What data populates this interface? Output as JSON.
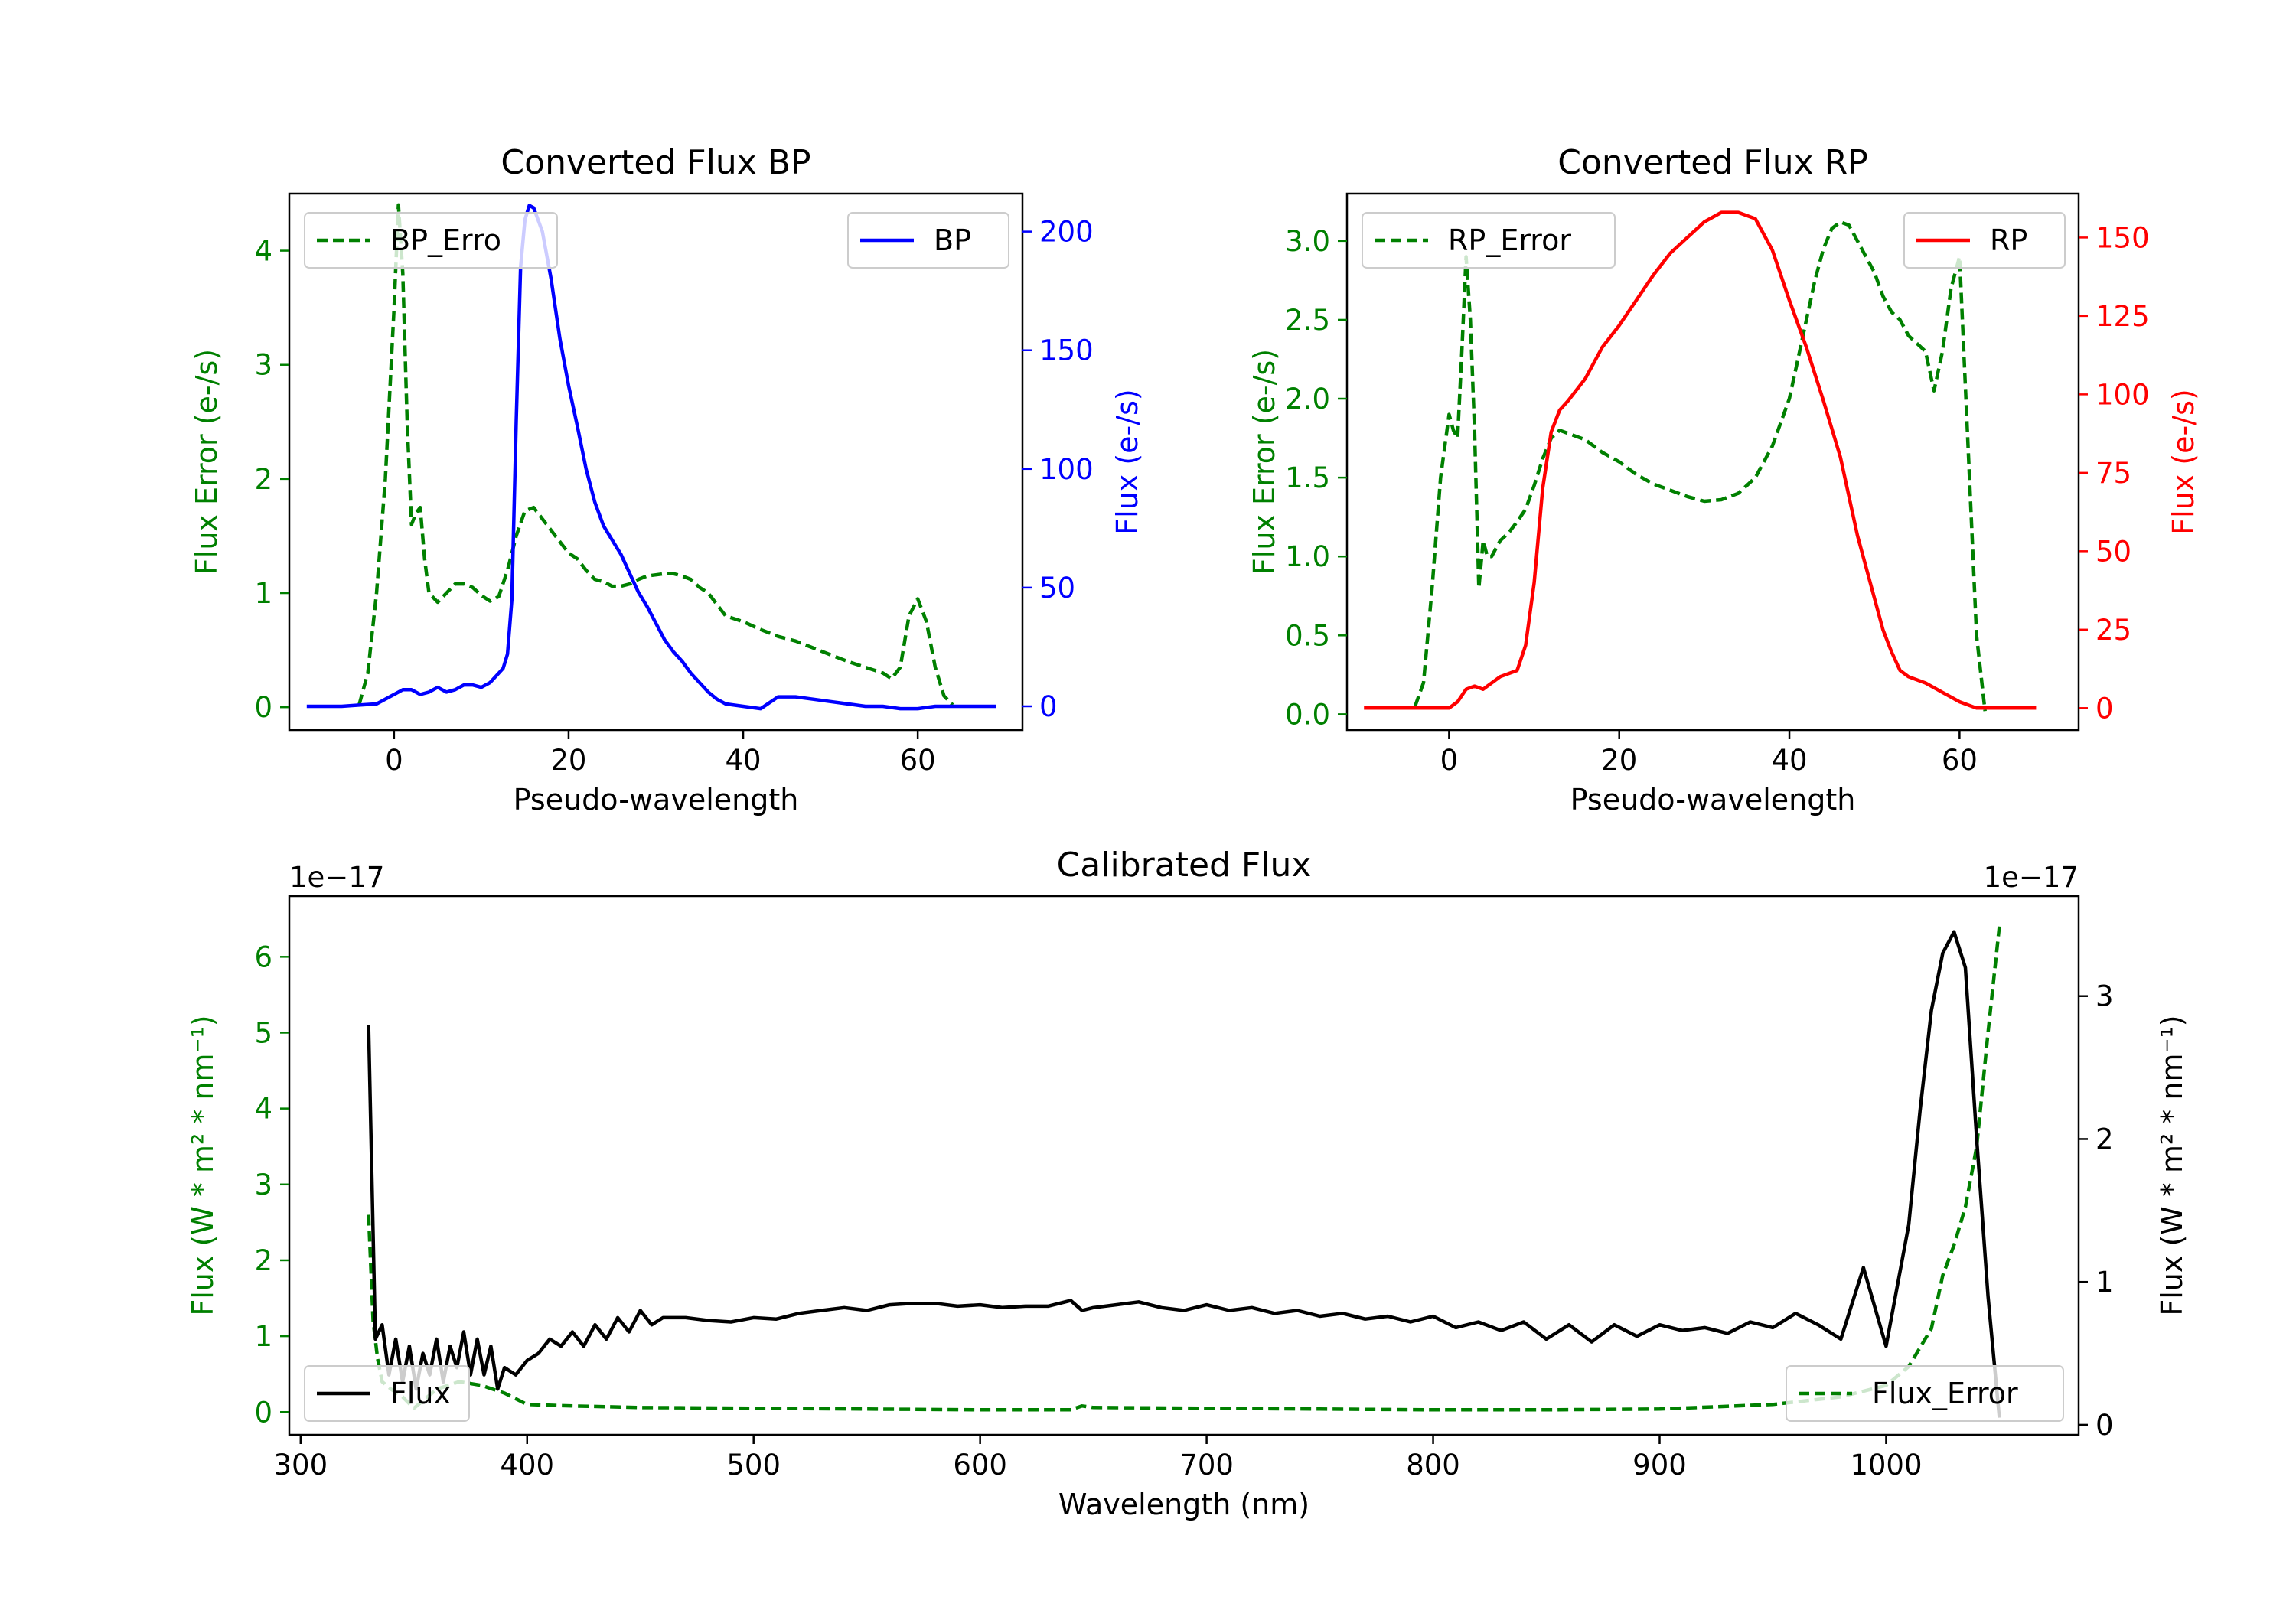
{
  "colors": {
    "error": "#008000",
    "bp": "#0000ff",
    "rp": "#ff0000",
    "flux": "#000000",
    "axis": "#000000"
  },
  "chart_data": [
    {
      "id": "bp",
      "type": "line",
      "title": "Converted Flux BP",
      "xlabel": "Pseudo-wavelength",
      "ylabel_left": "Flux Error (e-/s)",
      "ylabel_right": "Flux (e-/s)",
      "xlim": [
        -12,
        72
      ],
      "ylim_left": [
        -0.2,
        4.5
      ],
      "ylim_right": [
        -10,
        216
      ],
      "xticks": [
        "0",
        "20",
        "40",
        "60"
      ],
      "yticks_left": [
        "0",
        "1",
        "2",
        "3",
        "4"
      ],
      "yticks_right": [
        "0",
        "50",
        "100",
        "150",
        "200"
      ],
      "legend_left": "BP_Erro",
      "legend_right": "BP",
      "series": [
        {
          "name": "BP_Error",
          "axis": "left",
          "style": "dashed",
          "x": [
            -4,
            -3,
            -2,
            -1,
            0,
            0.5,
            1,
            1.5,
            2,
            2.5,
            3,
            3.5,
            4,
            5,
            6,
            7,
            8,
            9,
            10,
            11,
            12,
            13,
            14,
            15,
            16,
            17,
            18,
            19,
            20,
            21,
            22,
            23,
            24,
            25,
            26,
            27,
            28,
            29,
            30,
            31,
            32,
            33,
            34,
            35,
            36,
            38,
            40,
            42,
            44,
            46,
            48,
            50,
            52,
            54,
            56,
            57,
            58,
            59,
            60,
            61,
            62,
            63,
            64
          ],
          "values": [
            0.02,
            0.3,
            1.0,
            2.0,
            3.5,
            4.4,
            3.8,
            2.5,
            1.6,
            1.7,
            1.75,
            1.3,
            1.0,
            0.92,
            1.0,
            1.08,
            1.08,
            1.05,
            0.98,
            0.93,
            0.97,
            1.2,
            1.5,
            1.72,
            1.75,
            1.65,
            1.55,
            1.45,
            1.35,
            1.3,
            1.2,
            1.12,
            1.1,
            1.06,
            1.06,
            1.08,
            1.12,
            1.15,
            1.16,
            1.17,
            1.17,
            1.15,
            1.12,
            1.05,
            1.0,
            0.8,
            0.75,
            0.68,
            0.62,
            0.58,
            0.52,
            0.46,
            0.4,
            0.35,
            0.3,
            0.25,
            0.35,
            0.8,
            0.95,
            0.75,
            0.35,
            0.1,
            0.02
          ]
        },
        {
          "name": "BP",
          "axis": "right",
          "style": "solid",
          "x": [
            -10,
            -6,
            -4,
            -2,
            0,
            1,
            2,
            3,
            4,
            5,
            6,
            7,
            8,
            9,
            10,
            11,
            12,
            12.5,
            13,
            13.5,
            14,
            14.5,
            15,
            15.5,
            16,
            17,
            18,
            19,
            20,
            21,
            22,
            23,
            24,
            25,
            26,
            27,
            28,
            29,
            30,
            31,
            32,
            33,
            34,
            35,
            36,
            37,
            38,
            40,
            42,
            44,
            46,
            48,
            50,
            52,
            54,
            56,
            58,
            60,
            62,
            64,
            66,
            69
          ],
          "values": [
            0,
            0,
            0.5,
            1,
            5,
            7,
            7,
            5,
            6,
            8,
            6,
            7,
            9,
            9,
            8,
            10,
            14,
            16,
            22,
            45,
            120,
            185,
            205,
            211,
            210,
            200,
            180,
            155,
            135,
            118,
            100,
            86,
            76,
            70,
            64,
            56,
            48,
            42,
            35,
            28,
            23,
            19,
            14,
            10,
            6,
            3,
            1,
            0,
            -1,
            4,
            4,
            3,
            2,
            1,
            0,
            0,
            -1,
            -1,
            0,
            0,
            0,
            0
          ]
        }
      ]
    },
    {
      "id": "rp",
      "type": "line",
      "title": "Converted Flux RP",
      "xlabel": "Pseudo-wavelength",
      "ylabel_left": "Flux Error (e-/s)",
      "ylabel_right": "Flux (e-/s)",
      "xlim": [
        -12,
        74
      ],
      "ylim_left": [
        -0.1,
        3.3
      ],
      "ylim_right": [
        -7,
        164
      ],
      "xticks": [
        "0",
        "20",
        "40",
        "60"
      ],
      "yticks_left": [
        "0.0",
        "0.5",
        "1.0",
        "1.5",
        "2.0",
        "2.5",
        "3.0"
      ],
      "yticks_right": [
        "0",
        "25",
        "50",
        "75",
        "100",
        "125",
        "150"
      ],
      "legend_left": "RP_Error",
      "legend_right": "RP",
      "series": [
        {
          "name": "RP_Error",
          "axis": "left",
          "style": "dashed",
          "x": [
            -4,
            -3,
            -2,
            -1,
            0,
            0.5,
            1,
            1.5,
            2,
            2.5,
            3,
            3.5,
            4,
            4.5,
            5,
            6,
            7,
            8,
            9,
            10,
            11,
            12,
            13,
            14,
            16,
            18,
            20,
            22,
            24,
            26,
            28,
            30,
            32,
            34,
            36,
            38,
            40,
            41,
            42,
            43,
            44,
            45,
            46,
            47,
            48,
            49,
            50,
            51,
            52,
            53,
            54,
            55,
            56,
            57,
            58,
            59,
            60,
            61,
            62,
            63
          ],
          "values": [
            0.05,
            0.2,
            0.8,
            1.5,
            1.9,
            1.8,
            1.75,
            2.3,
            2.9,
            2.5,
            1.8,
            0.8,
            1.1,
            1.0,
            1.0,
            1.1,
            1.15,
            1.22,
            1.3,
            1.45,
            1.62,
            1.75,
            1.8,
            1.78,
            1.74,
            1.66,
            1.6,
            1.52,
            1.46,
            1.42,
            1.38,
            1.35,
            1.36,
            1.4,
            1.5,
            1.7,
            2.0,
            2.25,
            2.5,
            2.75,
            2.95,
            3.08,
            3.12,
            3.1,
            3.0,
            2.9,
            2.8,
            2.65,
            2.55,
            2.5,
            2.4,
            2.35,
            2.3,
            2.05,
            2.3,
            2.7,
            2.9,
            1.7,
            0.5,
            0.02
          ]
        },
        {
          "name": "RP",
          "axis": "right",
          "style": "solid",
          "x": [
            -10,
            -6,
            -2,
            0,
            1,
            2,
            3,
            4,
            6,
            8,
            9,
            10,
            11,
            12,
            13,
            14,
            16,
            18,
            20,
            22,
            24,
            26,
            28,
            30,
            32,
            34,
            36,
            38,
            40,
            42,
            44,
            46,
            48,
            50,
            51,
            52,
            53,
            54,
            56,
            58,
            60,
            62,
            64,
            69
          ],
          "values": [
            0,
            0,
            0,
            0,
            2,
            6,
            7,
            6,
            10,
            12,
            20,
            40,
            70,
            88,
            95,
            98,
            105,
            115,
            122,
            130,
            138,
            145,
            150,
            155,
            158,
            158,
            156,
            146,
            130,
            115,
            98,
            80,
            55,
            35,
            25,
            18,
            12,
            10,
            8,
            5,
            2,
            0,
            0,
            0
          ]
        }
      ]
    },
    {
      "id": "calibrated",
      "type": "line",
      "title": "Calibrated Flux",
      "xlabel": "Wavelength (nm)",
      "ylabel_left": "Flux (W * m² * nm⁻¹)",
      "ylabel_right": "Flux (W * m² * nm⁻¹)",
      "offset_left": "1e−17",
      "offset_right": "1e−17",
      "xlim": [
        295,
        1085
      ],
      "ylim_left": [
        -0.3,
        6.8
      ],
      "ylim_right": [
        -0.07,
        3.7
      ],
      "xticks": [
        "300",
        "400",
        "500",
        "600",
        "700",
        "800",
        "900",
        "1000"
      ],
      "yticks_left": [
        "0",
        "1",
        "2",
        "3",
        "4",
        "5",
        "6"
      ],
      "yticks_right": [
        "0",
        "1",
        "2",
        "3"
      ],
      "legend_left": "Flux",
      "legend_right": "Flux_Error",
      "series": [
        {
          "name": "Flux",
          "axis": "right",
          "style": "solid",
          "x": [
            330,
            333,
            336,
            339,
            342,
            345,
            348,
            351,
            354,
            357,
            360,
            363,
            366,
            369,
            372,
            375,
            378,
            381,
            384,
            387,
            390,
            395,
            400,
            405,
            410,
            415,
            420,
            425,
            430,
            435,
            440,
            445,
            450,
            455,
            460,
            470,
            480,
            490,
            500,
            510,
            520,
            530,
            540,
            550,
            560,
            570,
            580,
            590,
            600,
            610,
            620,
            630,
            640,
            645,
            650,
            660,
            670,
            680,
            690,
            700,
            710,
            720,
            730,
            740,
            750,
            760,
            770,
            780,
            790,
            800,
            810,
            820,
            830,
            840,
            850,
            860,
            870,
            880,
            890,
            900,
            910,
            920,
            930,
            940,
            950,
            960,
            970,
            980,
            990,
            1000,
            1010,
            1015,
            1020,
            1025,
            1030,
            1035,
            1040,
            1045,
            1050
          ],
          "values": [
            2.8,
            0.6,
            0.7,
            0.35,
            0.6,
            0.3,
            0.55,
            0.25,
            0.5,
            0.35,
            0.6,
            0.3,
            0.55,
            0.4,
            0.65,
            0.35,
            0.6,
            0.35,
            0.55,
            0.25,
            0.4,
            0.35,
            0.45,
            0.5,
            0.6,
            0.55,
            0.65,
            0.55,
            0.7,
            0.6,
            0.75,
            0.65,
            0.8,
            0.7,
            0.75,
            0.75,
            0.73,
            0.72,
            0.75,
            0.74,
            0.78,
            0.8,
            0.82,
            0.8,
            0.84,
            0.85,
            0.85,
            0.83,
            0.84,
            0.82,
            0.83,
            0.83,
            0.87,
            0.8,
            0.82,
            0.84,
            0.86,
            0.82,
            0.8,
            0.84,
            0.8,
            0.82,
            0.78,
            0.8,
            0.76,
            0.78,
            0.74,
            0.76,
            0.72,
            0.76,
            0.68,
            0.72,
            0.66,
            0.72,
            0.6,
            0.7,
            0.58,
            0.7,
            0.62,
            0.7,
            0.66,
            0.68,
            0.64,
            0.72,
            0.68,
            0.78,
            0.7,
            0.6,
            1.1,
            0.55,
            1.4,
            2.2,
            2.9,
            3.3,
            3.45,
            3.2,
            2.0,
            0.9,
            0.05
          ]
        },
        {
          "name": "Flux_Error",
          "axis": "left",
          "style": "dashed",
          "x": [
            330,
            332,
            334,
            336,
            340,
            345,
            350,
            360,
            370,
            380,
            390,
            400,
            420,
            450,
            500,
            550,
            600,
            640,
            645,
            650,
            700,
            750,
            800,
            850,
            900,
            950,
            980,
            1000,
            1010,
            1020,
            1025,
            1030,
            1035,
            1040,
            1045,
            1050
          ],
          "values": [
            2.6,
            1.2,
            0.7,
            0.4,
            0.3,
            0.2,
            0.05,
            0.3,
            0.4,
            0.35,
            0.25,
            0.1,
            0.08,
            0.06,
            0.05,
            0.04,
            0.03,
            0.03,
            0.08,
            0.06,
            0.05,
            0.04,
            0.03,
            0.03,
            0.04,
            0.1,
            0.2,
            0.35,
            0.6,
            1.1,
            1.8,
            2.2,
            2.7,
            3.5,
            5.0,
            6.4
          ]
        }
      ]
    }
  ]
}
